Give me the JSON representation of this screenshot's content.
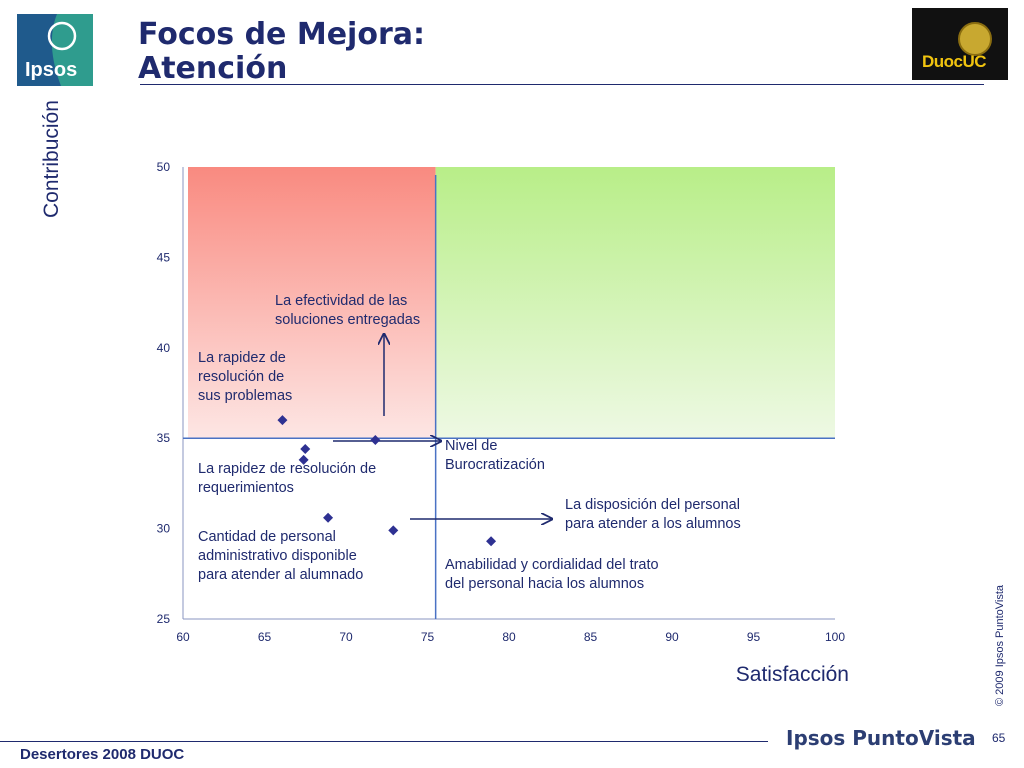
{
  "header": {
    "title_line1": "Focos de Mejora:",
    "title_line2": "Atención",
    "ipsos_logo_text": "Ipsos",
    "duoc_logo_text": "DuocUC"
  },
  "chart_data": {
    "type": "scatter",
    "xlabel": "Satisfacción",
    "ylabel": "Contribución",
    "xlim": [
      60,
      100
    ],
    "ylim": [
      25,
      50
    ],
    "x_ticks": [
      "60",
      "65",
      "70",
      "75",
      "80",
      "85",
      "90",
      "95",
      "100"
    ],
    "y_ticks": [
      "25",
      "30",
      "35",
      "40",
      "45",
      "50"
    ],
    "reference_lines": {
      "x": 75.5,
      "y": 35.0
    },
    "quadrants": {
      "left_color": "#f9a8a0",
      "right_color": "#c8f0a0"
    },
    "points": [
      {
        "x": 66.1,
        "y": 36.0
      },
      {
        "x": 67.5,
        "y": 34.4
      },
      {
        "x": 67.4,
        "y": 33.8
      },
      {
        "x": 71.8,
        "y": 34.9
      },
      {
        "x": 68.9,
        "y": 30.6
      },
      {
        "x": 72.9,
        "y": 29.9
      },
      {
        "x": 78.9,
        "y": 29.3
      }
    ],
    "marker_color": "#2e3192",
    "annotations": [
      {
        "id": "efectividad",
        "lines": [
          "La efectividad de las",
          "soluciones entregadas"
        ]
      },
      {
        "id": "rapidez-problemas",
        "lines": [
          "La rapidez de",
          "resolución de",
          "sus problemas"
        ]
      },
      {
        "id": "burocratizacion",
        "lines": [
          "Nivel de",
          "Burocratización"
        ]
      },
      {
        "id": "rapidez-requerimientos",
        "lines": [
          "La rapidez de resolución de",
          "requerimientos"
        ]
      },
      {
        "id": "disposicion",
        "lines": [
          "La disposición del personal",
          "para atender a los alumnos"
        ]
      },
      {
        "id": "cantidad-personal",
        "lines": [
          "Cantidad de personal",
          "administrativo disponible",
          "para atender al alumnado"
        ]
      },
      {
        "id": "amabilidad",
        "lines": [
          "Amabilidad y cordialidad del trato",
          "del personal hacia los alumnos"
        ]
      }
    ],
    "grid": false,
    "legend": "none"
  },
  "side": {
    "copyright": "© 2009 Ipsos PuntoVista"
  },
  "footer": {
    "left_text": "Desertores 2008 DUOC",
    "brand": "Ipsos PuntoVista",
    "page_number": "65"
  }
}
